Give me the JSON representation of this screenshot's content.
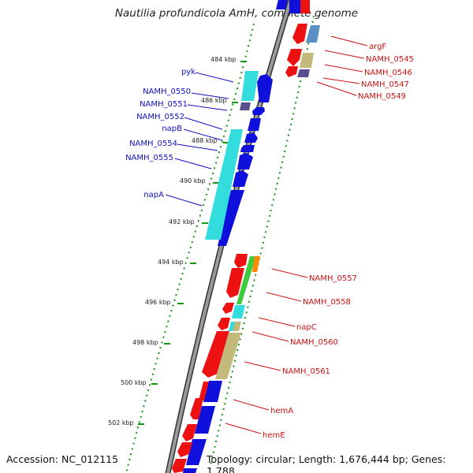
{
  "title": "Nautilia profundicola AmH, complete genome",
  "accession": "Accession: NC_012115",
  "topology": "Topology: circular; Length: 1,676,444 bp; Genes: 1,788",
  "ticks": [
    "484 kbp",
    "486 kbp",
    "488 kbp",
    "490 kbp",
    "492 kbp",
    "494 kbp",
    "496 kbp",
    "498 kbp",
    "500 kbp",
    "502 kbp"
  ],
  "colors": {
    "forward_gene": "#1010dd",
    "reverse_gene": "#ee1111",
    "cds_light_blue": "#33dddd",
    "cds_steel": "#5b8fc4",
    "cds_khaki": "#c2b97a",
    "cds_purple": "#5b4d8e",
    "cds_green": "#3dcc3d",
    "cds_orange": "#ff8800",
    "label_forward": "#1010bb",
    "label_reverse": "#cc1111",
    "tick_green": "#119911",
    "backbone": "#888888"
  },
  "forward_labels": [
    "pyk",
    "NAMH_0550",
    "NAMH_0551",
    "NAMH_0552",
    "napB",
    "NAMH_0554",
    "NAMH_0555",
    "napA"
  ],
  "reverse_labels": [
    "argF",
    "NAMH_0545",
    "NAMH_0546",
    "NAMH_0547",
    "NAMH_0549",
    "NAMH_0557",
    "NAMH_0558",
    "napC",
    "NAMH_0560",
    "NAMH_0561",
    "hemA",
    "hemE"
  ]
}
